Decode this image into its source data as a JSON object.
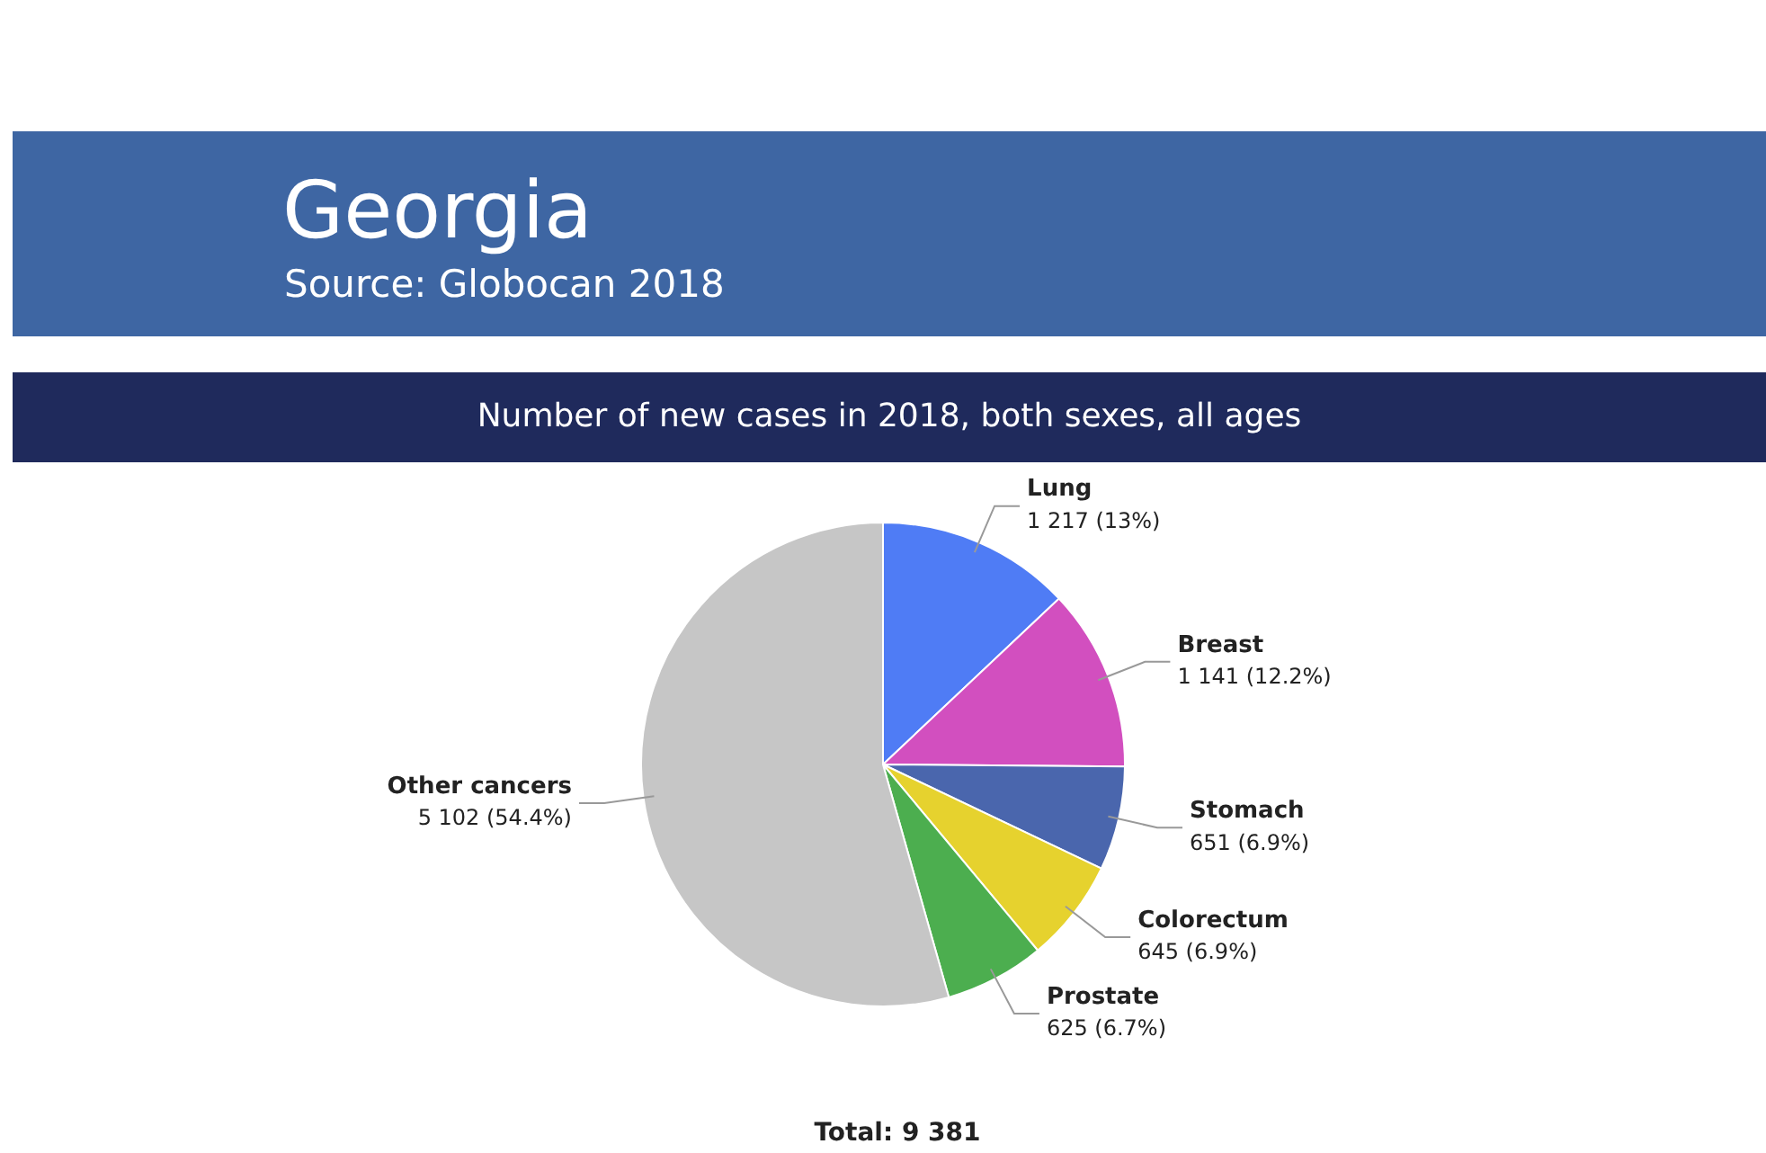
{
  "chart_data": {
    "type": "pie",
    "title": "Georgia",
    "subtitle": "Number of new cases in 2018, both sexes, all ages",
    "annotations": [
      "Source: Globocan 2018",
      "Total: 9 381"
    ],
    "categories": [
      "Lung",
      "Breast",
      "Stomach",
      "Colorectum",
      "Prostate",
      "Other cancers"
    ],
    "values": [
      1217,
      1141,
      651,
      645,
      625,
      5102
    ],
    "value_labels": [
      "1 217 (13%)",
      "1 141 (12.2%)",
      "651 (6.9%)",
      "645 (6.9%)",
      "625 (6.7%)",
      "5 102 (54.4%)"
    ],
    "colors": [
      "#4f7cf5",
      "#d24fbf",
      "#4a66ad",
      "#e6d22e",
      "#4cae4f",
      "#c6c6c6"
    ],
    "legend": false
  }
}
